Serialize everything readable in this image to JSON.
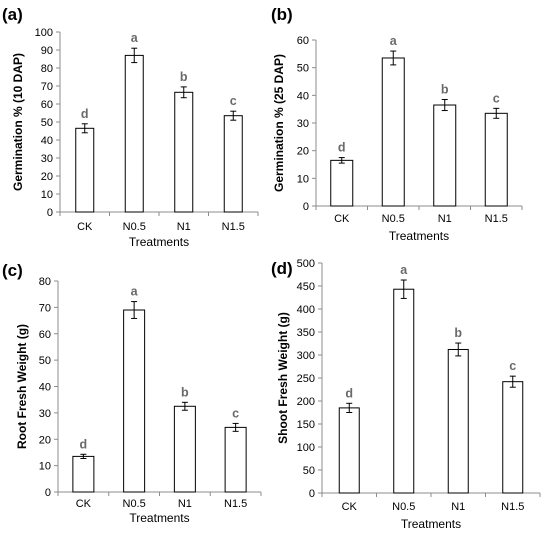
{
  "chart_data": [
    {
      "panel": "(a)",
      "type": "bar",
      "categories": [
        "CK",
        "N0.5",
        "N1",
        "N1.5"
      ],
      "values": [
        46.5,
        87,
        66.5,
        53.5
      ],
      "errors": [
        2.5,
        4,
        3,
        2.5
      ],
      "sig_letters": [
        "d",
        "a",
        "b",
        "c"
      ],
      "xlabel": "Treatments",
      "ylabel": "Germination % (10 DAP)",
      "ylim": [
        0,
        100
      ],
      "yticks": [
        0,
        10,
        20,
        30,
        40,
        50,
        60,
        70,
        80,
        90,
        100
      ],
      "bar_color": "#ffffff",
      "grid": false,
      "legend": "none"
    },
    {
      "panel": "(b)",
      "type": "bar",
      "categories": [
        "CK",
        "N0.5",
        "N1",
        "N1.5"
      ],
      "values": [
        16.5,
        53.5,
        36.5,
        33.5
      ],
      "errors": [
        1,
        2.5,
        2,
        1.8
      ],
      "sig_letters": [
        "d",
        "a",
        "b",
        "c"
      ],
      "xlabel": "Treatments",
      "ylabel": "Germination % (25 DAP)",
      "ylim": [
        0,
        60
      ],
      "yticks": [
        0,
        10,
        20,
        30,
        40,
        50,
        60
      ],
      "bar_color": "#ffffff",
      "grid": false,
      "legend": "none"
    },
    {
      "panel": "(c)",
      "type": "bar",
      "categories": [
        "CK",
        "N0.5",
        "N1",
        "N1.5"
      ],
      "values": [
        13.5,
        69,
        32.5,
        24.5
      ],
      "errors": [
        0.8,
        3.2,
        1.5,
        1.5
      ],
      "sig_letters": [
        "d",
        "a",
        "b",
        "c"
      ],
      "xlabel": "Treatments",
      "ylabel": "Root Fresh Weight (g)",
      "ylim": [
        0,
        80
      ],
      "yticks": [
        0,
        10,
        20,
        30,
        40,
        50,
        60,
        70,
        80
      ],
      "bar_color": "#ffffff",
      "grid": false,
      "legend": "none"
    },
    {
      "panel": "(d)",
      "type": "bar",
      "categories": [
        "CK",
        "N0.5",
        "N1",
        "N1.5"
      ],
      "values": [
        185,
        443,
        312,
        242
      ],
      "errors": [
        10,
        20,
        14,
        12
      ],
      "sig_letters": [
        "d",
        "a",
        "b",
        "c"
      ],
      "xlabel": "Treatments",
      "ylabel": "Shoot Fresh Weight (g)",
      "ylim": [
        0,
        500
      ],
      "yticks": [
        0,
        50,
        100,
        150,
        200,
        250,
        300,
        350,
        400,
        450,
        500
      ],
      "bar_color": "#ffffff",
      "grid": false,
      "legend": "none"
    }
  ]
}
